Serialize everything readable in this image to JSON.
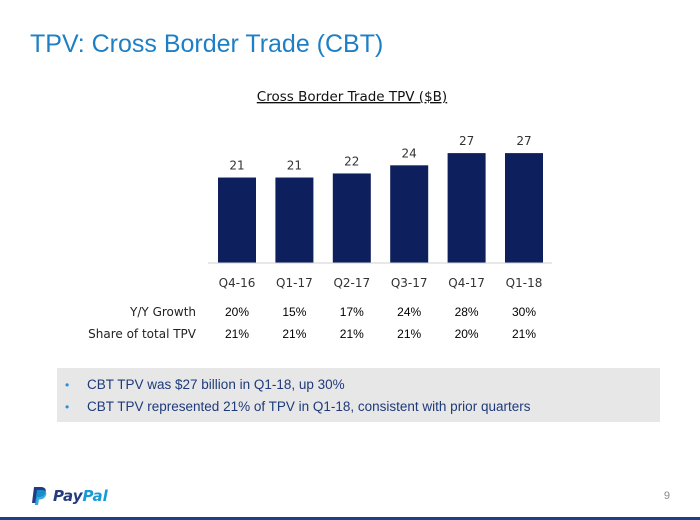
{
  "slide": {
    "title": "TPV: Cross Border Trade (CBT)",
    "page_number": "9"
  },
  "chart_data": {
    "type": "bar",
    "title": "Cross Border Trade TPV ($B)",
    "categories": [
      "Q4-16",
      "Q1-17",
      "Q2-17",
      "Q3-17",
      "Q4-17",
      "Q1-18"
    ],
    "values": [
      21,
      21,
      22,
      24,
      27,
      27
    ],
    "data_labels": [
      "21",
      "21",
      "22",
      "24",
      "27",
      "27"
    ],
    "xlabel": "",
    "ylabel": "",
    "ylim": [
      0,
      30
    ],
    "grid": false,
    "bar_color": "#0d1f5c"
  },
  "metrics": {
    "growth_label": "Y/Y Growth",
    "growth_values": [
      "20%",
      "15%",
      "17%",
      "24%",
      "28%",
      "30%"
    ],
    "share_label": "Share of  total TPV",
    "share_values": [
      "21%",
      "21%",
      "21%",
      "21%",
      "20%",
      "21%"
    ]
  },
  "bullets": [
    "CBT TPV was $27 billion in Q1-18, up 30%",
    "CBT TPV represented 21% of TPV in Q1-18, consistent with prior quarters"
  ],
  "brand": {
    "logo_name": "paypal-logo",
    "logo_pay": "Pay",
    "logo_pal": "Pal",
    "primary_color": "#1f7fc4",
    "navy": "#1d3f86"
  }
}
